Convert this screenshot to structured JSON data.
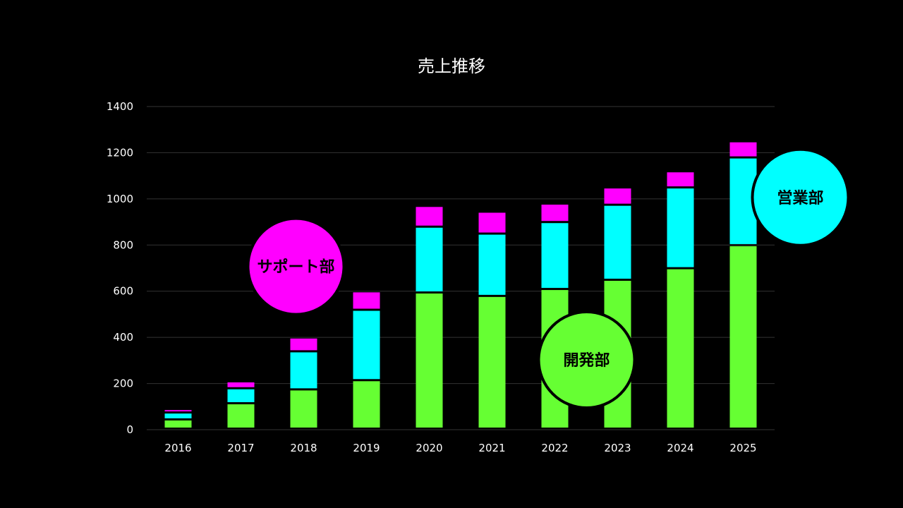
{
  "chart_data": {
    "type": "bar",
    "stacked": true,
    "title": "売上推移",
    "xlabel": "",
    "ylabel": "",
    "categories": [
      "2016",
      "2017",
      "2018",
      "2019",
      "2020",
      "2021",
      "2022",
      "2023",
      "2024",
      "2025"
    ],
    "series": [
      {
        "name": "開発部",
        "color": "#66ff33",
        "values": [
          40,
          110,
          170,
          210,
          590,
          575,
          605,
          645,
          695,
          795
        ]
      },
      {
        "name": "営業部",
        "color": "#00ffff",
        "values": [
          30,
          65,
          165,
          305,
          285,
          270,
          290,
          325,
          350,
          380
        ]
      },
      {
        "name": "サポート部",
        "color": "#ff00ff",
        "values": [
          15,
          30,
          60,
          80,
          90,
          95,
          80,
          75,
          70,
          70
        ]
      }
    ],
    "ylim": [
      0,
      1400
    ],
    "yticks": [
      0,
      200,
      400,
      600,
      800,
      1000,
      1200,
      1400
    ],
    "grid": true,
    "legend": "bubble labels on chart",
    "colors": {
      "background": "#000000",
      "grid": "#333333",
      "text": "#ffffff"
    }
  }
}
